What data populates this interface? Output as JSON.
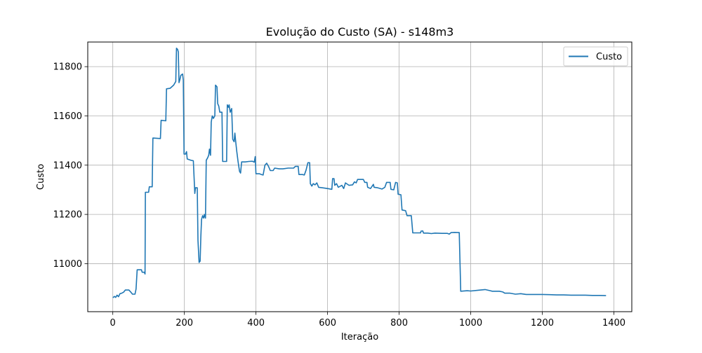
{
  "chart_data": {
    "type": "line",
    "title": "Evolução do Custo (SA) - s148m3",
    "xlabel": "Iteração",
    "ylabel": "Custo",
    "xlim": [
      -70,
      1450
    ],
    "ylim": [
      10805,
      11900
    ],
    "xticks": [
      0,
      200,
      400,
      600,
      800,
      1000,
      1200,
      1400
    ],
    "yticks": [
      11000,
      11200,
      11400,
      11600,
      11800
    ],
    "grid": true,
    "legend": {
      "position": "top-right",
      "entries": [
        "Custo"
      ]
    },
    "series": [
      {
        "name": "Custo",
        "color": "#1f77b4",
        "points": [
          [
            0,
            10862
          ],
          [
            5,
            10867
          ],
          [
            8,
            10863
          ],
          [
            12,
            10872
          ],
          [
            16,
            10866
          ],
          [
            20,
            10878
          ],
          [
            25,
            10880
          ],
          [
            30,
            10884
          ],
          [
            35,
            10893
          ],
          [
            45,
            10893
          ],
          [
            50,
            10885
          ],
          [
            55,
            10876
          ],
          [
            62,
            10876
          ],
          [
            65,
            10897
          ],
          [
            68,
            10975
          ],
          [
            80,
            10975
          ],
          [
            82,
            10965
          ],
          [
            88,
            10965
          ],
          [
            90,
            10958
          ],
          [
            91,
            11290
          ],
          [
            100,
            11290
          ],
          [
            102,
            11312
          ],
          [
            110,
            11312
          ],
          [
            112,
            11510
          ],
          [
            133,
            11508
          ],
          [
            135,
            11582
          ],
          [
            148,
            11580
          ],
          [
            150,
            11710
          ],
          [
            160,
            11712
          ],
          [
            170,
            11725
          ],
          [
            176,
            11740
          ],
          [
            178,
            11875
          ],
          [
            181,
            11870
          ],
          [
            183,
            11860
          ],
          [
            185,
            11735
          ],
          [
            188,
            11750
          ],
          [
            190,
            11765
          ],
          [
            195,
            11770
          ],
          [
            197,
            11745
          ],
          [
            199,
            11445
          ],
          [
            203,
            11445
          ],
          [
            206,
            11455
          ],
          [
            208,
            11425
          ],
          [
            218,
            11420
          ],
          [
            225,
            11418
          ],
          [
            229,
            11285
          ],
          [
            231,
            11308
          ],
          [
            236,
            11308
          ],
          [
            238,
            11095
          ],
          [
            241,
            11005
          ],
          [
            244,
            11010
          ],
          [
            246,
            11110
          ],
          [
            248,
            11180
          ],
          [
            251,
            11195
          ],
          [
            254,
            11185
          ],
          [
            256,
            11200
          ],
          [
            259,
            11185
          ],
          [
            261,
            11420
          ],
          [
            265,
            11430
          ],
          [
            268,
            11440
          ],
          [
            270,
            11465
          ],
          [
            273,
            11440
          ],
          [
            275,
            11575
          ],
          [
            278,
            11600
          ],
          [
            281,
            11590
          ],
          [
            285,
            11600
          ],
          [
            287,
            11725
          ],
          [
            291,
            11718
          ],
          [
            293,
            11650
          ],
          [
            296,
            11640
          ],
          [
            299,
            11615
          ],
          [
            305,
            11615
          ],
          [
            307,
            11415
          ],
          [
            314,
            11415
          ],
          [
            318,
            11415
          ],
          [
            320,
            11645
          ],
          [
            323,
            11635
          ],
          [
            325,
            11645
          ],
          [
            328,
            11615
          ],
          [
            332,
            11630
          ],
          [
            335,
            11505
          ],
          [
            339,
            11495
          ],
          [
            341,
            11530
          ],
          [
            343,
            11500
          ],
          [
            346,
            11460
          ],
          [
            350,
            11415
          ],
          [
            354,
            11375
          ],
          [
            357,
            11368
          ],
          [
            360,
            11413
          ],
          [
            370,
            11413
          ],
          [
            380,
            11415
          ],
          [
            390,
            11416
          ],
          [
            395,
            11412
          ],
          [
            398,
            11435
          ],
          [
            400,
            11365
          ],
          [
            410,
            11365
          ],
          [
            415,
            11362
          ],
          [
            420,
            11360
          ],
          [
            425,
            11400
          ],
          [
            430,
            11408
          ],
          [
            435,
            11395
          ],
          [
            440,
            11378
          ],
          [
            448,
            11378
          ],
          [
            452,
            11388
          ],
          [
            465,
            11385
          ],
          [
            475,
            11385
          ],
          [
            490,
            11388
          ],
          [
            505,
            11388
          ],
          [
            510,
            11395
          ],
          [
            518,
            11395
          ],
          [
            520,
            11362
          ],
          [
            530,
            11362
          ],
          [
            535,
            11360
          ],
          [
            540,
            11380
          ],
          [
            545,
            11410
          ],
          [
            550,
            11410
          ],
          [
            552,
            11325
          ],
          [
            556,
            11315
          ],
          [
            560,
            11325
          ],
          [
            565,
            11320
          ],
          [
            570,
            11328
          ],
          [
            575,
            11310
          ],
          [
            585,
            11308
          ],
          [
            600,
            11305
          ],
          [
            612,
            11302
          ],
          [
            614,
            11345
          ],
          [
            618,
            11345
          ],
          [
            620,
            11318
          ],
          [
            625,
            11325
          ],
          [
            630,
            11310
          ],
          [
            640,
            11318
          ],
          [
            645,
            11305
          ],
          [
            650,
            11328
          ],
          [
            660,
            11318
          ],
          [
            670,
            11320
          ],
          [
            675,
            11332
          ],
          [
            680,
            11328
          ],
          [
            684,
            11342
          ],
          [
            700,
            11342
          ],
          [
            704,
            11330
          ],
          [
            710,
            11330
          ],
          [
            712,
            11310
          ],
          [
            720,
            11305
          ],
          [
            728,
            11322
          ],
          [
            730,
            11310
          ],
          [
            740,
            11308
          ],
          [
            752,
            11303
          ],
          [
            760,
            11310
          ],
          [
            765,
            11330
          ],
          [
            775,
            11330
          ],
          [
            777,
            11302
          ],
          [
            785,
            11300
          ],
          [
            790,
            11330
          ],
          [
            795,
            11328
          ],
          [
            797,
            11282
          ],
          [
            805,
            11280
          ],
          [
            808,
            11218
          ],
          [
            818,
            11215
          ],
          [
            822,
            11195
          ],
          [
            834,
            11195
          ],
          [
            838,
            11125
          ],
          [
            850,
            11125
          ],
          [
            860,
            11125
          ],
          [
            861,
            11132
          ],
          [
            866,
            11133
          ],
          [
            868,
            11124
          ],
          [
            880,
            11124
          ],
          [
            890,
            11122
          ],
          [
            900,
            11124
          ],
          [
            920,
            11123
          ],
          [
            935,
            11123
          ],
          [
            940,
            11120
          ],
          [
            945,
            11126
          ],
          [
            955,
            11127
          ],
          [
            968,
            11126
          ],
          [
            972,
            10888
          ],
          [
            990,
            10890
          ],
          [
            1000,
            10889
          ],
          [
            1020,
            10892
          ],
          [
            1040,
            10895
          ],
          [
            1055,
            10890
          ],
          [
            1060,
            10888
          ],
          [
            1080,
            10888
          ],
          [
            1090,
            10885
          ],
          [
            1095,
            10880
          ],
          [
            1110,
            10880
          ],
          [
            1125,
            10876
          ],
          [
            1140,
            10878
          ],
          [
            1155,
            10875
          ],
          [
            1180,
            10875
          ],
          [
            1200,
            10875
          ],
          [
            1220,
            10874
          ],
          [
            1240,
            10873
          ],
          [
            1260,
            10873
          ],
          [
            1280,
            10872
          ],
          [
            1300,
            10872
          ],
          [
            1320,
            10872
          ],
          [
            1340,
            10871
          ],
          [
            1360,
            10871
          ],
          [
            1378,
            10870
          ]
        ]
      }
    ]
  }
}
